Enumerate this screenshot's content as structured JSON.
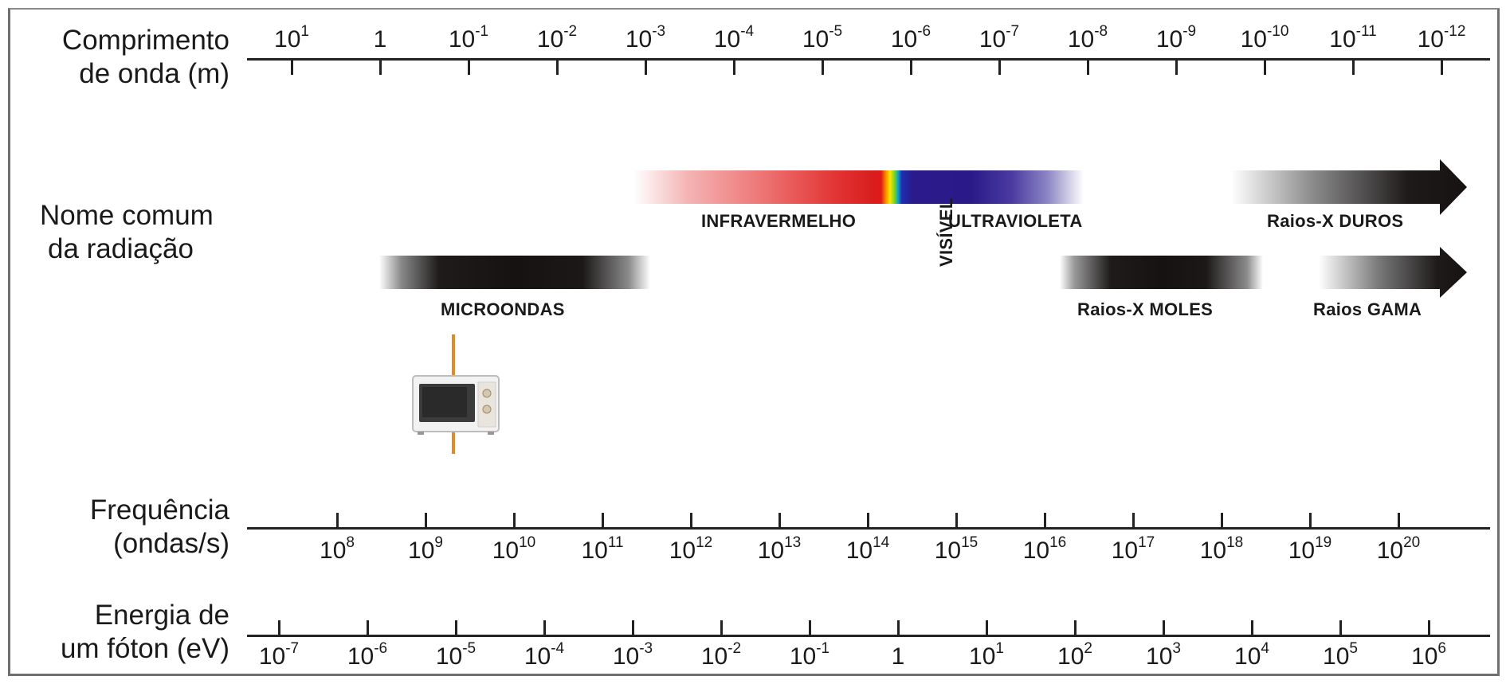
{
  "labels": {
    "wavelength": [
      "Comprimento",
      "de onda (m)"
    ],
    "name": [
      "Nome comum",
      "da radiação"
    ],
    "frequency": [
      "Frequência",
      "(ondas/s)"
    ],
    "energy": [
      "Energia de",
      "um fóton (eV)"
    ]
  },
  "wavelength_ticks": [
    {
      "base": "10",
      "exp": "1"
    },
    {
      "base": "1",
      "exp": ""
    },
    {
      "base": "10",
      "exp": "-1"
    },
    {
      "base": "10",
      "exp": "-2"
    },
    {
      "base": "10",
      "exp": "-3"
    },
    {
      "base": "10",
      "exp": "-4"
    },
    {
      "base": "10",
      "exp": "-5"
    },
    {
      "base": "10",
      "exp": "-6"
    },
    {
      "base": "10",
      "exp": "-7"
    },
    {
      "base": "10",
      "exp": "-8"
    },
    {
      "base": "10",
      "exp": "-9"
    },
    {
      "base": "10",
      "exp": "-10"
    },
    {
      "base": "10",
      "exp": "-11"
    },
    {
      "base": "10",
      "exp": "-12"
    }
  ],
  "frequency_ticks": [
    {
      "base": "10",
      "exp": "8"
    },
    {
      "base": "10",
      "exp": "9"
    },
    {
      "base": "10",
      "exp": "10"
    },
    {
      "base": "10",
      "exp": "11"
    },
    {
      "base": "10",
      "exp": "12"
    },
    {
      "base": "10",
      "exp": "13"
    },
    {
      "base": "10",
      "exp": "14"
    },
    {
      "base": "10",
      "exp": "15"
    },
    {
      "base": "10",
      "exp": "16"
    },
    {
      "base": "10",
      "exp": "17"
    },
    {
      "base": "10",
      "exp": "18"
    },
    {
      "base": "10",
      "exp": "19"
    },
    {
      "base": "10",
      "exp": "20"
    }
  ],
  "energy_ticks": [
    {
      "base": "10",
      "exp": "-7"
    },
    {
      "base": "10",
      "exp": "-6"
    },
    {
      "base": "10",
      "exp": "-5"
    },
    {
      "base": "10",
      "exp": "-4"
    },
    {
      "base": "10",
      "exp": "-3"
    },
    {
      "base": "10",
      "exp": "-2"
    },
    {
      "base": "10",
      "exp": "-1"
    },
    {
      "base": "1",
      "exp": ""
    },
    {
      "base": "10",
      "exp": "1"
    },
    {
      "base": "10",
      "exp": "2"
    },
    {
      "base": "10",
      "exp": "3"
    },
    {
      "base": "10",
      "exp": "4"
    },
    {
      "base": "10",
      "exp": "5"
    },
    {
      "base": "10",
      "exp": "6"
    }
  ],
  "radiation": {
    "microwaves": "MICROONDAS",
    "infrared": "INFRAVERMELHO",
    "visible": "VISÍVEL",
    "ultraviolet": "ULTRAVIOLETA",
    "soft_xrays": "Raios-X MOLES",
    "hard_xrays": "Raios-X DUROS",
    "gamma": "Raios GAMA"
  },
  "colors": {
    "infrared": "#e0201f",
    "ultraviolet": "#2b1a8a",
    "dark_band": "#161212",
    "microwave_marker": "#e08a2a"
  },
  "icons": {
    "microwave": "microwave-oven-icon"
  }
}
